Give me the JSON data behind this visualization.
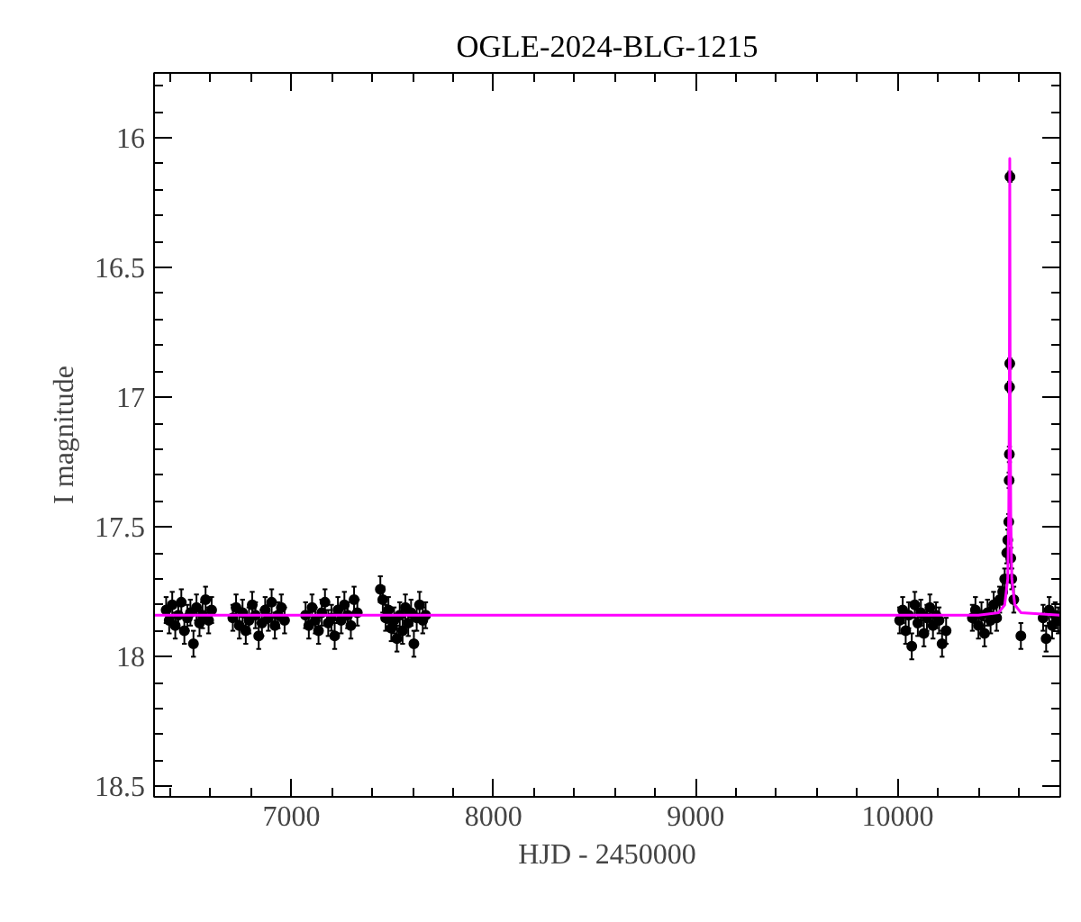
{
  "chart_data": {
    "type": "scatter",
    "title": "OGLE-2024-BLG-1215",
    "xlabel": "HJD - 2450000",
    "ylabel": "I magnitude",
    "xlim": [
      6320,
      10805
    ],
    "ylim": [
      18.54,
      15.75
    ],
    "xticks": [
      {
        "value": 6400,
        "label": null
      },
      {
        "value": 6600,
        "label": null
      },
      {
        "value": 6800,
        "label": null
      },
      7000,
      {
        "value": 7200,
        "label": null
      },
      {
        "value": 7400,
        "label": null
      },
      {
        "value": 7600,
        "label": null
      },
      {
        "value": 7800,
        "label": null
      },
      8000,
      {
        "value": 8200,
        "label": null
      },
      {
        "value": 8400,
        "label": null
      },
      {
        "value": 8600,
        "label": null
      },
      {
        "value": 8800,
        "label": null
      },
      9000,
      {
        "value": 9200,
        "label": null
      },
      {
        "value": 9400,
        "label": null
      },
      {
        "value": 9600,
        "label": null
      },
      {
        "value": 9800,
        "label": null
      },
      10000,
      {
        "value": 10200,
        "label": null
      },
      {
        "value": 10400,
        "label": null
      },
      {
        "value": 10600,
        "label": null
      }
    ],
    "yticks": [
      {
        "value": 15.8,
        "label": null
      },
      {
        "value": 15.9,
        "label": null
      },
      16,
      {
        "value": 16.1,
        "label": null
      },
      {
        "value": 16.2,
        "label": null
      },
      {
        "value": 16.3,
        "label": null
      },
      {
        "value": 16.4,
        "label": null
      },
      16.5,
      {
        "value": 16.6,
        "label": null
      },
      {
        "value": 16.7,
        "label": null
      },
      {
        "value": 16.8,
        "label": null
      },
      {
        "value": 16.9,
        "label": null
      },
      17,
      {
        "value": 17.1,
        "label": null
      },
      {
        "value": 17.2,
        "label": null
      },
      {
        "value": 17.3,
        "label": null
      },
      {
        "value": 17.4,
        "label": null
      },
      17.5,
      {
        "value": 17.6,
        "label": null
      },
      {
        "value": 17.7,
        "label": null
      },
      {
        "value": 17.8,
        "label": null
      },
      {
        "value": 17.9,
        "label": null
      },
      18,
      {
        "value": 18.1,
        "label": null
      },
      {
        "value": 18.2,
        "label": null
      },
      {
        "value": 18.3,
        "label": null
      },
      {
        "value": 18.4,
        "label": null
      },
      18.5
    ],
    "series": [
      {
        "color": "#000000",
        "marker": "circle",
        "x": [
          6380,
          6395,
          6410,
          6425,
          6440,
          6455,
          6470,
          6485,
          6500,
          6515,
          6530,
          6545,
          6560,
          6575,
          6590,
          6605,
          6710,
          6726,
          6742,
          6758,
          6774,
          6790,
          6806,
          6822,
          6838,
          6854,
          6870,
          6886,
          6902,
          6918,
          6934,
          6950,
          6966,
          7070,
          7086,
          7102,
          7118,
          7134,
          7150,
          7166,
          7182,
          7198,
          7214,
          7230,
          7246,
          7262,
          7278,
          7294,
          7310,
          7326,
          7440,
          7452,
          7466,
          7480,
          7494,
          7508,
          7522,
          7536,
          7550,
          7564,
          7578,
          7592,
          7606,
          7620,
          7634,
          7650,
          7664,
          10010,
          10025,
          10040,
          10055,
          10070,
          10085,
          10100,
          10115,
          10130,
          10145,
          10160,
          10175,
          10190,
          10205,
          10220,
          10240,
          10370,
          10385,
          10400,
          10415,
          10430,
          10445,
          10460,
          10475,
          10490,
          10505,
          10520,
          10530,
          10540,
          10545,
          10550,
          10552,
          10553,
          10554,
          10555,
          10556,
          10560,
          10565,
          10575,
          10610,
          10720,
          10735,
          10750,
          10765,
          10780,
          10795
        ],
        "values": [
          17.82,
          17.86,
          17.8,
          17.88,
          17.84,
          17.79,
          17.9,
          17.85,
          17.83,
          17.95,
          17.81,
          17.87,
          17.84,
          17.78,
          17.86,
          17.82,
          17.85,
          17.81,
          17.88,
          17.83,
          17.9,
          17.86,
          17.8,
          17.84,
          17.92,
          17.87,
          17.82,
          17.85,
          17.79,
          17.88,
          17.84,
          17.81,
          17.86,
          17.84,
          17.88,
          17.81,
          17.86,
          17.9,
          17.83,
          17.79,
          17.87,
          17.85,
          17.92,
          17.82,
          17.86,
          17.8,
          17.84,
          17.88,
          17.78,
          17.83,
          17.74,
          17.78,
          17.85,
          17.82,
          17.89,
          17.86,
          17.93,
          17.84,
          17.9,
          17.81,
          17.87,
          17.83,
          17.95,
          17.85,
          17.8,
          17.86,
          17.84,
          17.86,
          17.82,
          17.9,
          17.84,
          17.96,
          17.8,
          17.87,
          17.83,
          17.91,
          17.85,
          17.81,
          17.88,
          17.84,
          17.86,
          17.95,
          17.9,
          17.85,
          17.82,
          17.88,
          17.84,
          17.91,
          17.83,
          17.86,
          17.8,
          17.85,
          17.78,
          17.75,
          17.7,
          17.6,
          17.55,
          17.48,
          17.32,
          17.22,
          16.96,
          16.87,
          16.15,
          17.62,
          17.7,
          17.78,
          17.92,
          17.85,
          17.93,
          17.82,
          17.88,
          17.84,
          17.86
        ],
        "errors": [
          0.05,
          0.05,
          0.05,
          0.05,
          0.05,
          0.05,
          0.05,
          0.05,
          0.05,
          0.05,
          0.05,
          0.05,
          0.05,
          0.05,
          0.05,
          0.05,
          0.05,
          0.05,
          0.05,
          0.05,
          0.05,
          0.05,
          0.05,
          0.05,
          0.05,
          0.05,
          0.05,
          0.05,
          0.05,
          0.05,
          0.05,
          0.05,
          0.05,
          0.05,
          0.05,
          0.05,
          0.05,
          0.05,
          0.05,
          0.05,
          0.05,
          0.05,
          0.05,
          0.05,
          0.05,
          0.05,
          0.05,
          0.05,
          0.05,
          0.05,
          0.05,
          0.05,
          0.05,
          0.05,
          0.05,
          0.05,
          0.05,
          0.05,
          0.05,
          0.05,
          0.05,
          0.05,
          0.05,
          0.05,
          0.05,
          0.05,
          0.05,
          0.05,
          0.05,
          0.05,
          0.05,
          0.05,
          0.05,
          0.05,
          0.05,
          0.05,
          0.05,
          0.05,
          0.05,
          0.05,
          0.05,
          0.05,
          0.05,
          0.05,
          0.05,
          0.05,
          0.05,
          0.05,
          0.05,
          0.05,
          0.05,
          0.05,
          0.05,
          0.05,
          0.04,
          0.04,
          0.04,
          0.03,
          0.03,
          0.03,
          0.02,
          0.02,
          0.02,
          0.04,
          0.04,
          0.05,
          0.05,
          0.05,
          0.05,
          0.05,
          0.05,
          0.05,
          0.05
        ]
      },
      {
        "type": "line",
        "marker": "none",
        "color": "#ff00ff",
        "x": [
          6320,
          10400,
          10500,
          10530,
          10545,
          10550,
          10553,
          10555,
          10557,
          10560,
          10565,
          10580,
          10610,
          10805
        ],
        "values": [
          17.84,
          17.84,
          17.83,
          17.8,
          17.7,
          17.45,
          17.0,
          16.08,
          17.0,
          17.45,
          17.7,
          17.8,
          17.83,
          17.84
        ]
      }
    ]
  }
}
